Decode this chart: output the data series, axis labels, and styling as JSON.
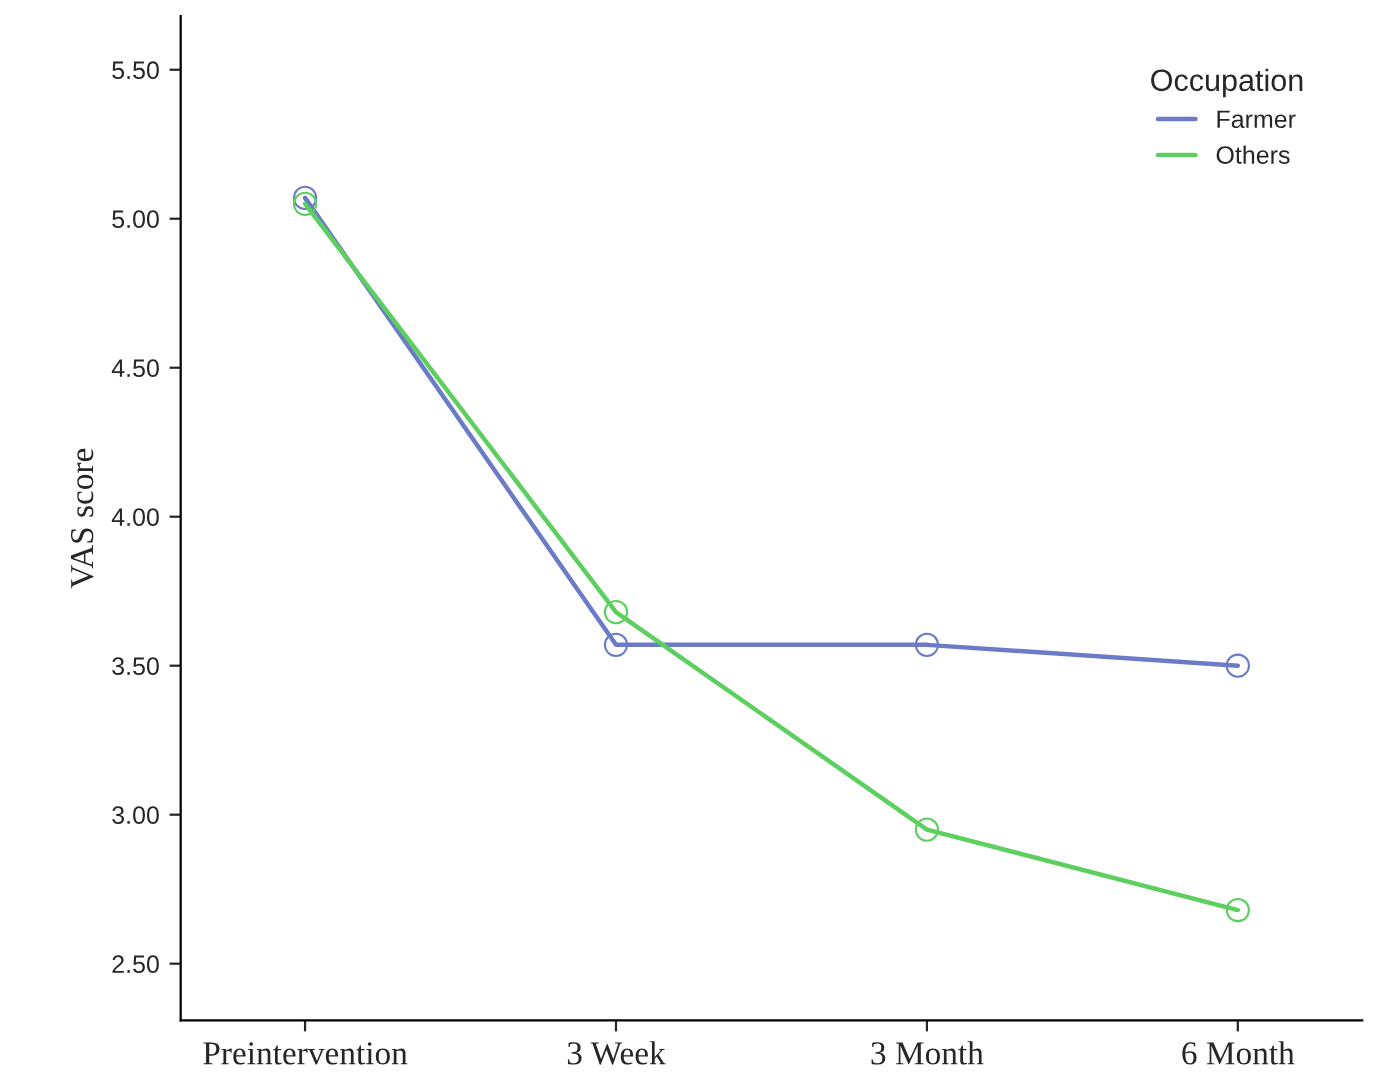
{
  "chart_data": {
    "type": "line",
    "ylabel": "VAS score",
    "legend_title": "Occupation",
    "categories": [
      "Preintervention",
      "3 Week",
      "3 Month",
      "6 Month"
    ],
    "series": [
      {
        "name": "Farmer",
        "color": "#6b7bc6",
        "values": [
          5.07,
          3.57,
          3.57,
          3.5
        ]
      },
      {
        "name": "Others",
        "color": "#5ccf5f",
        "values": [
          5.05,
          3.68,
          2.95,
          2.68
        ]
      }
    ],
    "ylim": [
      2.31,
      5.68
    ],
    "yticks": [
      {
        "value": 2.5,
        "label": "2.50"
      },
      {
        "value": 3.0,
        "label": "3.00"
      },
      {
        "value": 3.5,
        "label": "3.50"
      },
      {
        "value": 4.0,
        "label": "4.00"
      },
      {
        "value": 4.5,
        "label": "4.50"
      },
      {
        "value": 5.0,
        "label": "5.00"
      },
      {
        "value": 5.5,
        "label": "5.50"
      }
    ],
    "marker": "circle",
    "line_style": "solid",
    "grid": false,
    "legend": "top right"
  }
}
